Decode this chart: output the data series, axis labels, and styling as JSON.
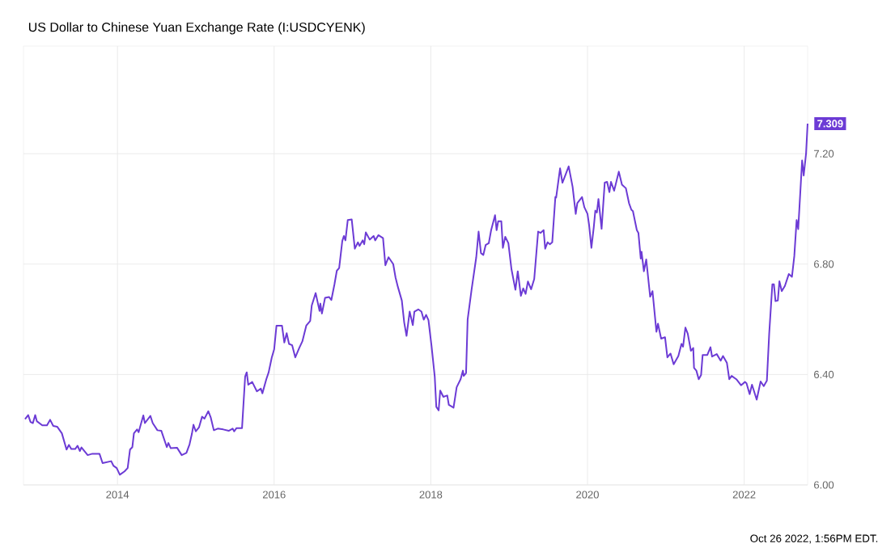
{
  "chart_data": {
    "type": "line",
    "title": "US Dollar to Chinese Yuan Exchange Rate (I:USDCYENK)",
    "annotations": [
      "Oct 26 2022, 1:56PM EDT."
    ],
    "color": "#6c3bd5",
    "grid": true,
    "xlim": [
      2012.8,
      2022.81
    ],
    "ylim": [
      6.0,
      7.59
    ],
    "xticks": [
      2014,
      2016,
      2018,
      2020,
      2022
    ],
    "yticks": [
      {
        "value": 6.0,
        "label": "6.00"
      },
      {
        "value": 6.4,
        "label": "6.40"
      },
      {
        "value": 6.8,
        "label": "6.80"
      },
      {
        "value": 7.2,
        "label": "7.20"
      }
    ],
    "x": [
      2012.82,
      2012.86,
      2012.89,
      2012.92,
      2012.95,
      2012.97,
      2013.04,
      2013.1,
      2013.14,
      2013.18,
      2013.23,
      2013.29,
      2013.35,
      2013.38,
      2013.41,
      2013.46,
      2013.49,
      2013.52,
      2013.54,
      2013.62,
      2013.68,
      2013.77,
      2013.81,
      2013.92,
      2013.95,
      2013.99,
      2014.03,
      2014.09,
      2014.13,
      2014.16,
      2014.19,
      2014.21,
      2014.25,
      2014.27,
      2014.33,
      2014.35,
      2014.42,
      2014.45,
      2014.51,
      2014.56,
      2014.63,
      2014.65,
      2014.68,
      2014.76,
      2014.82,
      2014.88,
      2014.92,
      2014.95,
      2014.97,
      2015.0,
      2015.04,
      2015.08,
      2015.11,
      2015.16,
      2015.19,
      2015.23,
      2015.28,
      2015.35,
      2015.42,
      2015.47,
      2015.49,
      2015.52,
      2015.59,
      2015.63,
      2015.65,
      2015.67,
      2015.72,
      2015.78,
      2015.83,
      2015.85,
      2015.9,
      2015.93,
      2015.97,
      2016.0,
      2016.03,
      2016.1,
      2016.13,
      2016.16,
      2016.19,
      2016.23,
      2016.27,
      2016.32,
      2016.36,
      2016.41,
      2016.46,
      2016.48,
      2016.53,
      2016.58,
      2016.59,
      2016.61,
      2016.65,
      2016.7,
      2016.73,
      2016.77,
      2016.8,
      2016.83,
      2016.87,
      2016.89,
      2016.91,
      2016.94,
      2016.99,
      2017.03,
      2017.07,
      2017.09,
      2017.13,
      2017.15,
      2017.17,
      2017.22,
      2017.27,
      2017.29,
      2017.33,
      2017.39,
      2017.42,
      2017.46,
      2017.52,
      2017.55,
      2017.58,
      2017.63,
      2017.66,
      2017.69,
      2017.73,
      2017.77,
      2017.79,
      2017.84,
      2017.88,
      2017.91,
      2017.94,
      2017.97,
      2018.01,
      2018.05,
      2018.07,
      2018.1,
      2018.12,
      2018.16,
      2018.21,
      2018.23,
      2018.29,
      2018.33,
      2018.38,
      2018.41,
      2018.42,
      2018.45,
      2018.47,
      2018.52,
      2018.58,
      2018.61,
      2018.64,
      2018.67,
      2018.7,
      2018.74,
      2018.77,
      2018.82,
      2018.84,
      2018.86,
      2018.9,
      2018.92,
      2018.95,
      2018.99,
      2019.03,
      2019.08,
      2019.11,
      2019.15,
      2019.18,
      2019.21,
      2019.24,
      2019.28,
      2019.32,
      2019.37,
      2019.4,
      2019.44,
      2019.46,
      2019.49,
      2019.52,
      2019.55,
      2019.59,
      2019.6,
      2019.65,
      2019.68,
      2019.72,
      2019.76,
      2019.81,
      2019.85,
      2019.87,
      2019.93,
      2019.96,
      2020.0,
      2020.02,
      2020.05,
      2020.08,
      2020.1,
      2020.12,
      2020.14,
      2020.18,
      2020.22,
      2020.25,
      2020.28,
      2020.3,
      2020.34,
      2020.4,
      2020.44,
      2020.49,
      2020.53,
      2020.56,
      2020.58,
      2020.63,
      2020.65,
      2020.68,
      2020.69,
      2020.72,
      2020.75,
      2020.8,
      2020.83,
      2020.88,
      2020.9,
      2020.94,
      2020.99,
      2021.02,
      2021.06,
      2021.1,
      2021.16,
      2021.2,
      2021.22,
      2021.25,
      2021.28,
      2021.32,
      2021.35,
      2021.36,
      2021.39,
      2021.42,
      2021.45,
      2021.47,
      2021.53,
      2021.57,
      2021.59,
      2021.65,
      2021.7,
      2021.73,
      2021.78,
      2021.81,
      2021.84,
      2021.9,
      2021.96,
      2022.01,
      2022.03,
      2022.07,
      2022.1,
      2022.16,
      2022.21,
      2022.25,
      2022.29,
      2022.32,
      2022.36,
      2022.38,
      2022.4,
      2022.43,
      2022.45,
      2022.48,
      2022.52,
      2022.57,
      2022.61,
      2022.64,
      2022.67,
      2022.69,
      2022.74,
      2022.76,
      2022.79,
      2022.81
    ],
    "values": [
      6.238,
      6.253,
      6.228,
      6.224,
      6.253,
      6.231,
      6.216,
      6.216,
      6.236,
      6.214,
      6.211,
      6.187,
      6.128,
      6.145,
      6.13,
      6.13,
      6.142,
      6.123,
      6.136,
      6.108,
      6.113,
      6.113,
      6.079,
      6.086,
      6.069,
      6.061,
      6.037,
      6.049,
      6.061,
      6.128,
      6.137,
      6.187,
      6.201,
      6.191,
      6.252,
      6.224,
      6.25,
      6.224,
      6.198,
      6.196,
      6.137,
      6.152,
      6.133,
      6.135,
      6.108,
      6.116,
      6.147,
      6.185,
      6.218,
      6.194,
      6.208,
      6.247,
      6.24,
      6.267,
      6.245,
      6.198,
      6.204,
      6.201,
      6.196,
      6.204,
      6.194,
      6.206,
      6.206,
      6.393,
      6.408,
      6.363,
      6.373,
      6.339,
      6.349,
      6.332,
      6.383,
      6.408,
      6.462,
      6.491,
      6.577,
      6.577,
      6.516,
      6.55,
      6.511,
      6.506,
      6.462,
      6.496,
      6.52,
      6.577,
      6.594,
      6.65,
      6.695,
      6.63,
      6.657,
      6.621,
      6.678,
      6.681,
      6.67,
      6.727,
      6.776,
      6.786,
      6.884,
      6.902,
      6.886,
      6.96,
      6.962,
      6.856,
      6.879,
      6.866,
      6.886,
      6.872,
      6.915,
      6.889,
      6.902,
      6.886,
      6.905,
      6.894,
      6.796,
      6.825,
      6.8,
      6.751,
      6.717,
      6.668,
      6.589,
      6.54,
      6.628,
      6.579,
      6.628,
      6.636,
      6.628,
      6.599,
      6.616,
      6.597,
      6.501,
      6.393,
      6.283,
      6.27,
      6.342,
      6.319,
      6.324,
      6.29,
      6.28,
      6.354,
      6.383,
      6.414,
      6.395,
      6.405,
      6.599,
      6.707,
      6.825,
      6.918,
      6.84,
      6.833,
      6.869,
      6.876,
      6.923,
      6.977,
      6.923,
      6.955,
      6.955,
      6.859,
      6.899,
      6.876,
      6.781,
      6.707,
      6.774,
      6.685,
      6.712,
      6.692,
      6.737,
      6.709,
      6.746,
      6.918,
      6.913,
      6.923,
      6.856,
      6.879,
      6.872,
      6.879,
      7.043,
      7.041,
      7.147,
      7.095,
      7.124,
      7.154,
      7.08,
      6.982,
      7.021,
      7.043,
      7.006,
      6.982,
      6.943,
      6.859,
      6.933,
      6.994,
      6.987,
      7.036,
      6.928,
      7.095,
      7.098,
      7.061,
      7.098,
      7.066,
      7.135,
      7.088,
      7.075,
      7.021,
      6.997,
      6.992,
      6.923,
      6.913,
      6.82,
      6.845,
      6.774,
      6.817,
      6.682,
      6.702,
      6.555,
      6.584,
      6.53,
      6.535,
      6.462,
      6.476,
      6.437,
      6.467,
      6.511,
      6.501,
      6.57,
      6.548,
      6.486,
      6.496,
      6.424,
      6.414,
      6.383,
      6.398,
      6.471,
      6.471,
      6.499,
      6.465,
      6.474,
      6.45,
      6.467,
      6.442,
      6.383,
      6.395,
      6.383,
      6.361,
      6.373,
      6.368,
      6.329,
      6.363,
      6.309,
      6.375,
      6.358,
      6.378,
      6.55,
      6.727,
      6.727,
      6.666,
      6.668,
      6.738,
      6.702,
      6.721,
      6.764,
      6.754,
      6.829,
      6.96,
      6.927,
      7.176,
      7.121,
      7.2,
      7.309
    ],
    "value_labels": [
      null,
      null,
      null,
      null,
      null,
      null,
      null,
      null,
      null,
      null,
      null,
      null,
      null,
      null,
      null,
      null,
      null,
      null,
      null,
      null,
      null,
      null,
      null,
      null,
      null,
      null,
      null,
      null,
      null,
      null,
      null,
      null,
      null,
      null,
      null,
      null,
      null,
      null,
      null,
      null,
      null,
      null,
      null,
      null,
      null,
      null,
      null,
      null,
      null,
      null,
      null,
      null,
      null,
      null,
      null,
      null,
      null,
      null,
      null,
      null,
      null,
      null,
      null,
      null,
      null,
      null,
      null,
      null,
      null,
      null,
      null,
      null,
      null,
      null,
      null,
      null,
      null,
      null,
      null,
      null,
      null,
      null,
      null,
      null,
      null,
      null,
      null,
      null,
      null,
      null,
      null,
      null,
      null,
      null,
      null,
      null,
      null,
      null,
      null,
      null,
      null,
      null,
      null,
      null,
      null,
      null,
      null,
      null,
      null,
      null,
      null,
      null,
      null,
      null,
      null,
      null,
      null,
      null,
      null,
      null,
      null,
      null,
      null,
      null,
      null,
      null,
      null,
      null,
      null,
      null,
      null,
      null,
      null,
      null,
      null,
      null,
      null,
      null,
      null,
      null,
      null,
      null,
      null,
      null,
      null,
      null,
      null,
      null,
      null,
      null,
      null,
      null,
      null,
      null,
      null,
      null,
      null,
      null,
      null,
      null,
      null,
      null,
      null,
      null,
      null,
      null,
      null,
      null,
      null,
      null,
      null,
      null,
      null,
      null,
      null,
      null,
      null,
      null,
      null,
      null,
      null,
      null,
      null,
      null,
      null,
      null,
      null,
      null,
      null,
      null,
      null,
      null,
      null,
      null,
      null,
      null,
      null,
      null,
      null,
      null,
      null,
      null,
      null,
      null,
      null,
      null,
      null,
      null,
      null,
      null,
      null,
      null,
      null,
      null,
      null,
      null,
      null,
      null,
      null,
      null,
      null,
      null,
      null,
      null,
      null,
      null,
      null,
      null,
      null,
      null,
      null,
      null,
      null,
      null,
      null,
      null,
      null,
      null,
      null,
      null,
      null,
      null,
      null,
      null,
      null,
      null,
      null,
      null,
      null,
      null,
      null,
      null,
      null,
      null,
      null,
      null,
      null,
      null,
      null,
      null,
      null,
      null,
      null,
      null,
      null,
      null,
      "7.309"
    ]
  }
}
